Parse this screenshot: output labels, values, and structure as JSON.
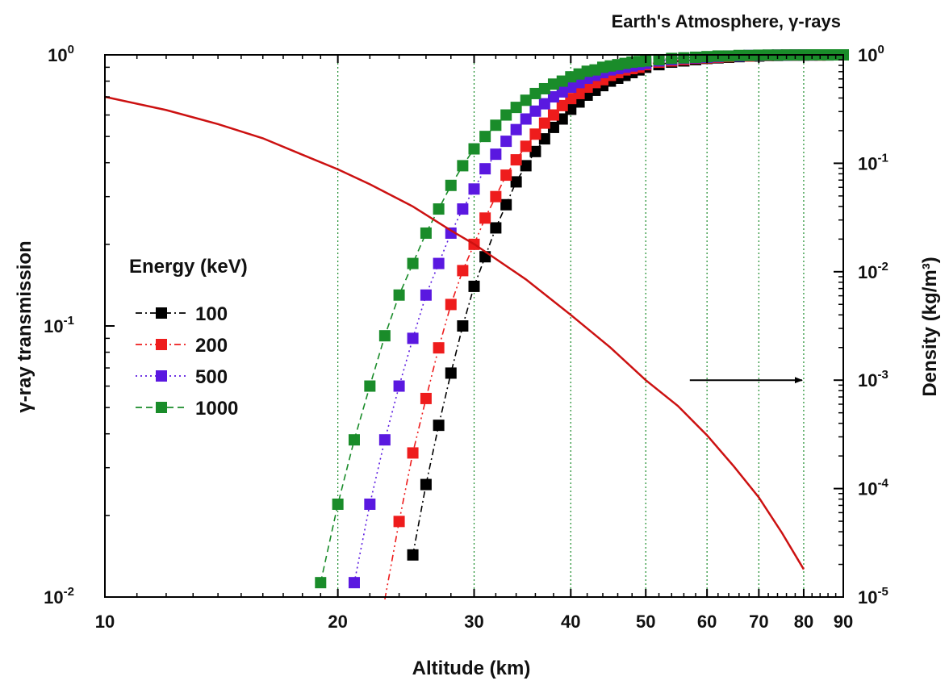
{
  "chart_data": {
    "type": "scatter",
    "title": "Earth's Atmosphere,  γ-rays",
    "xlabel": "Altitude (km)",
    "ylabel_left": "γ-ray transmission",
    "ylabel_right": "Density (kg/m³)",
    "x_scale": "log",
    "y_left_scale": "log",
    "y_right_scale": "log",
    "xlim": [
      10,
      90
    ],
    "ylim_left": [
      0.01,
      1
    ],
    "ylim_right": [
      1e-05,
      1
    ],
    "x_ticks": [
      10,
      20,
      30,
      40,
      50,
      60,
      70,
      80,
      90
    ],
    "x_tick_labels": [
      "10",
      "20",
      "30",
      "40",
      "50",
      "60",
      "70",
      "80",
      "90"
    ],
    "x_gridlines": [
      20,
      30,
      40,
      50,
      60,
      70,
      80
    ],
    "y_left_ticks": [
      {
        "value": 1,
        "base": "10",
        "exp": "0"
      },
      {
        "value": 0.1,
        "base": "10",
        "exp": "-1"
      },
      {
        "value": 0.01,
        "base": "10",
        "exp": "-2"
      }
    ],
    "y_right_ticks": [
      {
        "value": 1,
        "base": "10",
        "exp": "0"
      },
      {
        "value": 0.1,
        "base": "10",
        "exp": "-1"
      },
      {
        "value": 0.01,
        "base": "10",
        "exp": "-2"
      },
      {
        "value": 0.001,
        "base": "10",
        "exp": "-3"
      },
      {
        "value": 0.0001,
        "base": "10",
        "exp": "-4"
      },
      {
        "value": 1e-05,
        "base": "10",
        "exp": "-5"
      }
    ],
    "legend": {
      "title": "Energy (keV)",
      "placement": "center-left"
    },
    "series": [
      {
        "name": "100",
        "color": "#000000",
        "axis": "left",
        "marker": "square",
        "line": "dash-dot",
        "x": [
          25,
          26,
          27,
          28,
          29,
          30,
          31,
          32,
          33,
          34,
          35,
          36,
          37,
          38,
          39,
          40,
          41,
          42,
          43,
          44,
          45,
          46,
          47,
          48,
          49,
          50,
          52,
          54,
          56,
          58,
          60,
          62,
          64,
          66,
          68,
          70,
          72,
          74,
          76,
          78,
          80,
          82,
          84,
          86,
          88,
          90
        ],
        "y": [
          0.0143,
          0.026,
          0.043,
          0.067,
          0.1,
          0.14,
          0.18,
          0.23,
          0.28,
          0.34,
          0.39,
          0.44,
          0.49,
          0.54,
          0.58,
          0.63,
          0.67,
          0.71,
          0.74,
          0.77,
          0.8,
          0.82,
          0.84,
          0.86,
          0.88,
          0.9,
          0.92,
          0.94,
          0.95,
          0.96,
          0.97,
          0.975,
          0.98,
          0.985,
          0.99,
          0.99,
          0.995,
          0.995,
          0.997,
          0.998,
          0.998,
          0.999,
          0.999,
          0.999,
          1.0,
          1.0
        ]
      },
      {
        "name": "200",
        "color": "#ee1c1c",
        "axis": "left",
        "marker": "square",
        "line": "dash-dot-dot",
        "x": [
          23,
          24,
          25,
          26,
          27,
          28,
          29,
          30,
          31,
          32,
          33,
          34,
          35,
          36,
          37,
          38,
          39,
          40,
          41,
          42,
          43,
          44,
          45,
          46,
          47,
          48,
          49,
          50,
          52,
          54,
          56,
          58,
          60,
          62,
          64,
          66,
          68,
          70,
          72,
          74,
          76,
          78,
          80,
          82,
          84,
          86,
          88,
          90
        ],
        "y": [
          0.0098,
          0.019,
          0.034,
          0.054,
          0.083,
          0.12,
          0.16,
          0.2,
          0.25,
          0.3,
          0.36,
          0.41,
          0.46,
          0.51,
          0.56,
          0.6,
          0.65,
          0.69,
          0.72,
          0.76,
          0.79,
          0.81,
          0.84,
          0.86,
          0.88,
          0.89,
          0.9,
          0.92,
          0.94,
          0.95,
          0.96,
          0.97,
          0.975,
          0.98,
          0.985,
          0.99,
          0.99,
          0.995,
          0.995,
          0.997,
          0.998,
          0.998,
          0.999,
          0.999,
          0.999,
          1.0,
          1.0,
          1.0
        ]
      },
      {
        "name": "500",
        "color": "#5a18e0",
        "axis": "left",
        "marker": "square",
        "line": "dotted",
        "x": [
          21,
          22,
          23,
          24,
          25,
          26,
          27,
          28,
          29,
          30,
          31,
          32,
          33,
          34,
          35,
          36,
          37,
          38,
          39,
          40,
          41,
          42,
          43,
          44,
          45,
          46,
          47,
          48,
          49,
          50,
          52,
          54,
          56,
          58,
          60,
          62,
          64,
          66,
          68,
          70,
          72,
          74,
          76,
          78,
          80,
          82,
          84,
          86,
          88,
          90
        ],
        "y": [
          0.0113,
          0.022,
          0.038,
          0.06,
          0.09,
          0.13,
          0.17,
          0.22,
          0.27,
          0.32,
          0.38,
          0.43,
          0.48,
          0.53,
          0.58,
          0.62,
          0.66,
          0.7,
          0.73,
          0.76,
          0.79,
          0.82,
          0.84,
          0.86,
          0.88,
          0.89,
          0.9,
          0.91,
          0.92,
          0.93,
          0.95,
          0.96,
          0.97,
          0.975,
          0.98,
          0.985,
          0.99,
          0.99,
          0.995,
          0.995,
          0.997,
          0.998,
          0.998,
          0.999,
          0.999,
          0.999,
          1.0,
          1.0,
          1.0,
          1.0
        ]
      },
      {
        "name": "1000",
        "color": "#1a8c2a",
        "axis": "left",
        "marker": "square",
        "line": "dashed",
        "x": [
          19,
          20,
          21,
          22,
          23,
          24,
          25,
          26,
          27,
          28,
          29,
          30,
          31,
          32,
          33,
          34,
          35,
          36,
          37,
          38,
          39,
          40,
          41,
          42,
          43,
          44,
          45,
          46,
          47,
          48,
          49,
          50,
          52,
          54,
          56,
          58,
          60,
          62,
          64,
          66,
          68,
          70,
          72,
          74,
          76,
          78,
          80,
          82,
          84,
          86,
          88,
          90
        ],
        "y": [
          0.0113,
          0.022,
          0.038,
          0.06,
          0.092,
          0.13,
          0.17,
          0.22,
          0.27,
          0.33,
          0.39,
          0.45,
          0.5,
          0.55,
          0.6,
          0.64,
          0.68,
          0.72,
          0.75,
          0.78,
          0.8,
          0.83,
          0.85,
          0.87,
          0.88,
          0.9,
          0.91,
          0.92,
          0.93,
          0.94,
          0.945,
          0.95,
          0.96,
          0.97,
          0.975,
          0.98,
          0.985,
          0.99,
          0.99,
          0.995,
          0.995,
          0.997,
          0.998,
          0.998,
          0.999,
          0.999,
          0.999,
          1.0,
          1.0,
          1.0,
          1.0,
          1.0
        ]
      },
      {
        "name": "Density",
        "color": "#cc1111",
        "axis": "right",
        "marker": "none",
        "line": "solid",
        "x": [
          10,
          12,
          14,
          16,
          18,
          20,
          22,
          25,
          28,
          30,
          35,
          40,
          45,
          50,
          55,
          60,
          65,
          70,
          75,
          80
        ],
        "y": [
          0.41,
          0.31,
          0.23,
          0.17,
          0.12,
          0.088,
          0.064,
          0.04,
          0.024,
          0.018,
          0.0085,
          0.004,
          0.002,
          0.001,
          0.00058,
          0.00031,
          0.00016,
          8.3e-05,
          3.9e-05,
          1.8e-05
        ]
      }
    ],
    "annotations": [
      {
        "type": "arrow",
        "direction": "right",
        "x_from": 57,
        "x_to": 80,
        "y_right": 0.001
      }
    ]
  }
}
